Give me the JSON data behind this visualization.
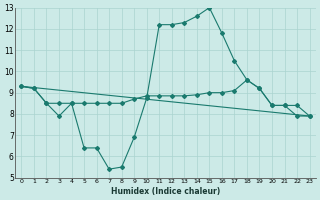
{
  "title": "",
  "xlabel": "Humidex (Indice chaleur)",
  "bg_color": "#cceae7",
  "grid_color": "#aad4d0",
  "line_color": "#1a7a6e",
  "xlim": [
    -0.5,
    23.5
  ],
  "ylim": [
    5,
    13
  ],
  "xticks": [
    0,
    1,
    2,
    3,
    4,
    5,
    6,
    7,
    8,
    9,
    10,
    11,
    12,
    13,
    14,
    15,
    16,
    17,
    18,
    19,
    20,
    21,
    22,
    23
  ],
  "yticks": [
    5,
    6,
    7,
    8,
    9,
    10,
    11,
    12,
    13
  ],
  "line1_x": [
    0,
    1,
    2,
    3,
    4,
    5,
    6,
    7,
    8,
    9,
    10,
    11,
    12,
    13,
    14,
    15,
    16,
    17,
    18,
    19,
    20,
    21,
    22,
    23
  ],
  "line1_y": [
    9.3,
    9.2,
    8.5,
    7.9,
    8.5,
    6.4,
    6.4,
    5.4,
    5.5,
    6.9,
    8.75,
    12.2,
    12.2,
    12.3,
    12.6,
    13.0,
    11.8,
    10.5,
    9.6,
    9.2,
    8.4,
    8.4,
    7.9,
    7.9
  ],
  "line2_x": [
    0,
    1,
    2,
    3,
    4,
    5,
    6,
    7,
    8,
    9,
    10,
    11,
    12,
    13,
    14,
    15,
    16,
    17,
    18,
    19,
    20,
    21,
    22,
    23
  ],
  "line2_y": [
    9.3,
    9.2,
    8.5,
    8.5,
    8.5,
    8.5,
    8.5,
    8.5,
    8.5,
    8.7,
    8.85,
    8.85,
    8.85,
    8.85,
    8.9,
    9.0,
    9.0,
    9.1,
    9.6,
    9.2,
    8.4,
    8.4,
    8.4,
    7.9
  ],
  "line3_x": [
    0,
    23
  ],
  "line3_y": [
    9.3,
    7.9
  ]
}
